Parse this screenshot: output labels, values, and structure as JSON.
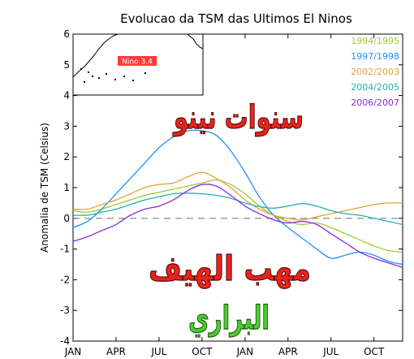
{
  "chart_data": {
    "type": "line",
    "title": "Evolucao da TSM das Ultimos El Ninos",
    "ylabel": "Anomalia de TSM (Celsius)",
    "xlabel": "",
    "ylim": [
      -4,
      6
    ],
    "yticks": [
      -4,
      -3,
      -2,
      -1,
      0,
      1,
      2,
      3,
      4,
      5,
      6
    ],
    "ytick_labels": [
      "-4",
      "-3",
      "-2",
      "-1",
      "0",
      "1",
      "2",
      "3",
      "4",
      "5",
      "6"
    ],
    "xlim": [
      0,
      23
    ],
    "xticks": [
      0,
      3,
      6,
      9,
      12,
      15,
      18,
      21
    ],
    "xtick_labels": [
      "JAN",
      "APR",
      "JUL",
      "OCT",
      "JAN",
      "APR",
      "JUL",
      "OCT"
    ],
    "x": [
      0,
      1,
      2,
      3,
      4,
      5,
      6,
      7,
      8,
      9,
      10,
      11,
      12,
      13,
      14,
      15,
      16,
      17,
      18,
      19,
      20,
      21,
      22,
      23
    ],
    "zero_line": true,
    "series": [
      {
        "name": "1994/1995",
        "color": "#9ACD32",
        "values": [
          0.25,
          0.2,
          0.3,
          0.45,
          0.6,
          0.75,
          0.85,
          0.95,
          1.05,
          1.15,
          1.25,
          1.1,
          0.8,
          0.4,
          0.1,
          -0.1,
          -0.2,
          -0.15,
          -0.3,
          -0.5,
          -0.7,
          -0.9,
          -1.05,
          -1.1
        ]
      },
      {
        "name": "1997/1998",
        "color": "#1E90FF",
        "values": [
          -0.3,
          -0.1,
          0.3,
          0.8,
          1.3,
          1.8,
          2.3,
          2.65,
          2.85,
          2.85,
          2.7,
          2.2,
          1.5,
          0.7,
          0.1,
          -0.3,
          -0.65,
          -1.0,
          -1.3,
          -1.2,
          -1.1,
          -1.2,
          -1.4,
          -1.5
        ]
      },
      {
        "name": "2002/2003",
        "color": "#E8A033",
        "values": [
          0.3,
          0.3,
          0.45,
          0.6,
          0.8,
          1.0,
          1.1,
          1.15,
          1.35,
          1.5,
          1.3,
          1.0,
          0.6,
          0.3,
          0.1,
          0.0,
          -0.05,
          0.05,
          0.15,
          0.25,
          0.35,
          0.45,
          0.5,
          0.5
        ]
      },
      {
        "name": "2004/2005",
        "color": "#20B2AA",
        "values": [
          0.1,
          0.1,
          0.2,
          0.3,
          0.45,
          0.6,
          0.7,
          0.8,
          0.82,
          0.8,
          0.75,
          0.65,
          0.5,
          0.38,
          0.33,
          0.4,
          0.48,
          0.4,
          0.25,
          0.15,
          0.1,
          0.0,
          -0.1,
          -0.2
        ]
      },
      {
        "name": "2006/2007",
        "color": "#8A2BE2",
        "values": [
          -0.75,
          -0.6,
          -0.4,
          -0.2,
          0.1,
          0.3,
          0.4,
          0.6,
          0.9,
          1.1,
          1.05,
          0.75,
          0.4,
          0.15,
          -0.05,
          -0.15,
          -0.1,
          -0.2,
          -0.5,
          -0.8,
          -1.1,
          -1.3,
          -1.45,
          -1.6
        ]
      }
    ]
  },
  "inset": {
    "label": "Nino 3.4",
    "label_color": "#FF3B3B"
  },
  "overlay": {
    "line1": "سنوات نينو",
    "line2": "مهب الهيف",
    "line3": "البراري",
    "line1_color": "#E8231C",
    "line2_color": "#E8231C",
    "line3_color": "#4CCB2E"
  }
}
